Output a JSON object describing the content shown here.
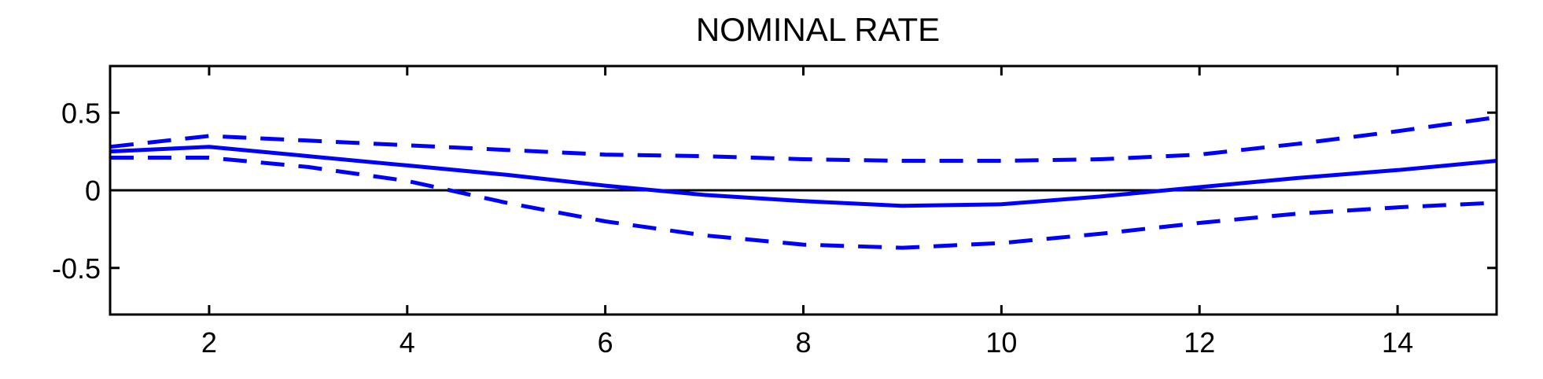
{
  "chart_data": {
    "type": "line",
    "title": "NOMINAL RATE",
    "xlabel": "",
    "ylabel": "",
    "xlim": [
      1,
      15
    ],
    "ylim": [
      -0.8,
      0.8
    ],
    "x_ticks": [
      2,
      4,
      6,
      8,
      10,
      12,
      14
    ],
    "x_tick_labels": [
      "2",
      "4",
      "6",
      "8",
      "10",
      "12",
      "14"
    ],
    "y_ticks": [
      0.5,
      0,
      -0.5
    ],
    "y_tick_labels": [
      "0.5",
      "0",
      "-0.5"
    ],
    "zero_line": true,
    "grid": false,
    "x": [
      1,
      2,
      3,
      4,
      5,
      6,
      7,
      8,
      9,
      10,
      11,
      12,
      13,
      14,
      15
    ],
    "series": [
      {
        "style": "solid",
        "color": "#0000ff",
        "values": [
          0.25,
          0.28,
          0.22,
          0.16,
          0.1,
          0.03,
          -0.03,
          -0.07,
          -0.1,
          -0.09,
          -0.04,
          0.02,
          0.08,
          0.13,
          0.19
        ]
      },
      {
        "style": "dashed",
        "color": "#0000ff",
        "values": [
          0.28,
          0.35,
          0.32,
          0.29,
          0.26,
          0.23,
          0.22,
          0.2,
          0.19,
          0.19,
          0.2,
          0.23,
          0.3,
          0.38,
          0.47
        ]
      },
      {
        "style": "dashed",
        "color": "#0000ff",
        "values": [
          0.21,
          0.21,
          0.15,
          0.06,
          -0.08,
          -0.2,
          -0.29,
          -0.35,
          -0.37,
          -0.34,
          -0.28,
          -0.21,
          -0.15,
          -0.11,
          -0.08
        ]
      }
    ]
  }
}
